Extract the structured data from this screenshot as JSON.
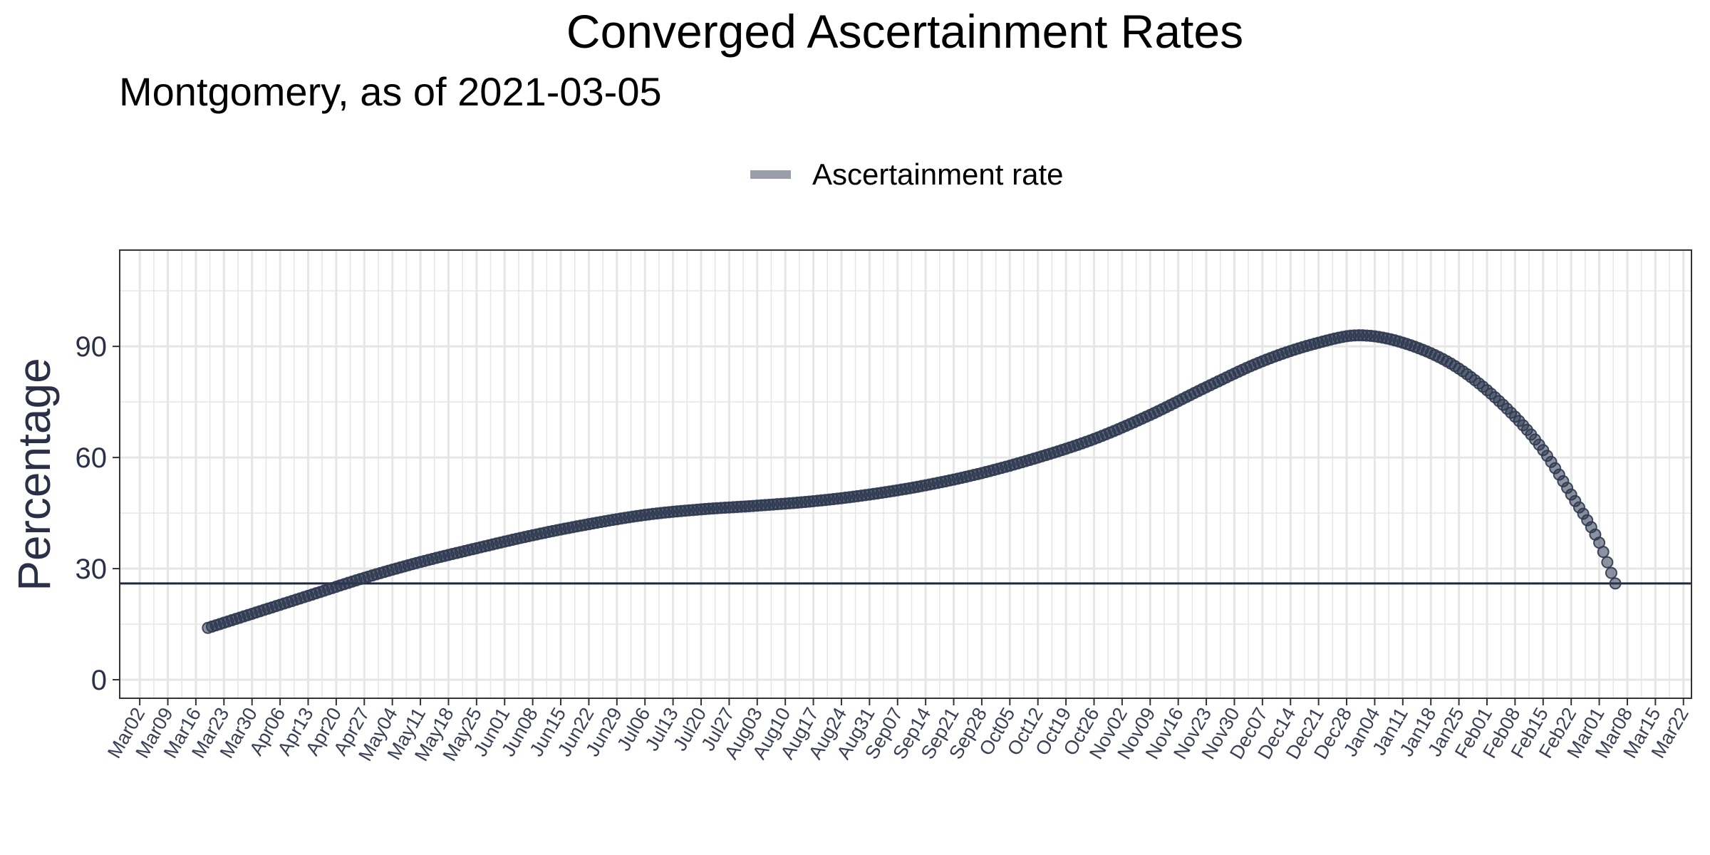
{
  "chart_data": {
    "type": "scatter",
    "title": "Converged Ascertainment Rates",
    "subtitle": "Montgomery, as of 2021-03-05",
    "ylabel": "Percentage",
    "xlabel": "",
    "legend": {
      "position": "top",
      "entries": [
        "Ascertainment rate"
      ]
    },
    "colors": {
      "series": "#2e3850",
      "hline": "#1e2840",
      "grid": "#e6e6e6",
      "legend_swatch": "#9a9eab"
    },
    "grid": true,
    "x_date_range": [
      "2020-02-26",
      "2021-03-24"
    ],
    "ylim": [
      -5,
      116
    ],
    "yticks": [
      0,
      30,
      60,
      90
    ],
    "xticks": [
      {
        "date": "2020-03-02",
        "label": "Mar02"
      },
      {
        "date": "2020-03-09",
        "label": "Mar09"
      },
      {
        "date": "2020-03-16",
        "label": "Mar16"
      },
      {
        "date": "2020-03-23",
        "label": "Mar23"
      },
      {
        "date": "2020-03-30",
        "label": "Mar30"
      },
      {
        "date": "2020-04-06",
        "label": "Apr06"
      },
      {
        "date": "2020-04-13",
        "label": "Apr13"
      },
      {
        "date": "2020-04-20",
        "label": "Apr20"
      },
      {
        "date": "2020-04-27",
        "label": "Apr27"
      },
      {
        "date": "2020-05-04",
        "label": "May04"
      },
      {
        "date": "2020-05-11",
        "label": "May11"
      },
      {
        "date": "2020-05-18",
        "label": "May18"
      },
      {
        "date": "2020-05-25",
        "label": "May25"
      },
      {
        "date": "2020-06-01",
        "label": "Jun01"
      },
      {
        "date": "2020-06-08",
        "label": "Jun08"
      },
      {
        "date": "2020-06-15",
        "label": "Jun15"
      },
      {
        "date": "2020-06-22",
        "label": "Jun22"
      },
      {
        "date": "2020-06-29",
        "label": "Jun29"
      },
      {
        "date": "2020-07-06",
        "label": "Jul06"
      },
      {
        "date": "2020-07-13",
        "label": "Jul13"
      },
      {
        "date": "2020-07-20",
        "label": "Jul20"
      },
      {
        "date": "2020-07-27",
        "label": "Jul27"
      },
      {
        "date": "2020-08-03",
        "label": "Aug03"
      },
      {
        "date": "2020-08-10",
        "label": "Aug10"
      },
      {
        "date": "2020-08-17",
        "label": "Aug17"
      },
      {
        "date": "2020-08-24",
        "label": "Aug24"
      },
      {
        "date": "2020-08-31",
        "label": "Aug31"
      },
      {
        "date": "2020-09-07",
        "label": "Sep07"
      },
      {
        "date": "2020-09-14",
        "label": "Sep14"
      },
      {
        "date": "2020-09-21",
        "label": "Sep21"
      },
      {
        "date": "2020-09-28",
        "label": "Sep28"
      },
      {
        "date": "2020-10-05",
        "label": "Oct05"
      },
      {
        "date": "2020-10-12",
        "label": "Oct12"
      },
      {
        "date": "2020-10-19",
        "label": "Oct19"
      },
      {
        "date": "2020-10-26",
        "label": "Oct26"
      },
      {
        "date": "2020-11-02",
        "label": "Nov02"
      },
      {
        "date": "2020-11-09",
        "label": "Nov09"
      },
      {
        "date": "2020-11-16",
        "label": "Nov16"
      },
      {
        "date": "2020-11-23",
        "label": "Nov23"
      },
      {
        "date": "2020-11-30",
        "label": "Nov30"
      },
      {
        "date": "2020-12-07",
        "label": "Dec07"
      },
      {
        "date": "2020-12-14",
        "label": "Dec14"
      },
      {
        "date": "2020-12-21",
        "label": "Dec21"
      },
      {
        "date": "2020-12-28",
        "label": "Dec28"
      },
      {
        "date": "2021-01-04",
        "label": "Jan04"
      },
      {
        "date": "2021-01-11",
        "label": "Jan11"
      },
      {
        "date": "2021-01-18",
        "label": "Jan18"
      },
      {
        "date": "2021-01-25",
        "label": "Jan25"
      },
      {
        "date": "2021-02-01",
        "label": "Feb01"
      },
      {
        "date": "2021-02-08",
        "label": "Feb08"
      },
      {
        "date": "2021-02-15",
        "label": "Feb15"
      },
      {
        "date": "2021-02-22",
        "label": "Feb22"
      },
      {
        "date": "2021-03-01",
        "label": "Mar01"
      },
      {
        "date": "2021-03-08",
        "label": "Mar08"
      },
      {
        "date": "2021-03-15",
        "label": "Mar15"
      },
      {
        "date": "2021-03-22",
        "label": "Mar22"
      }
    ],
    "hline": {
      "y": 26
    },
    "series": [
      {
        "name": "Ascertainment rate",
        "points": [
          {
            "x": "2020-03-19",
            "y": 14
          },
          {
            "x": "2020-04-01",
            "y": 18.5
          },
          {
            "x": "2020-04-14",
            "y": 23
          },
          {
            "x": "2020-04-27",
            "y": 27.5
          },
          {
            "x": "2020-05-10",
            "y": 31.5
          },
          {
            "x": "2020-05-25",
            "y": 35.5
          },
          {
            "x": "2020-06-08",
            "y": 39
          },
          {
            "x": "2020-06-22",
            "y": 42
          },
          {
            "x": "2020-07-06",
            "y": 44.5
          },
          {
            "x": "2020-07-20",
            "y": 46
          },
          {
            "x": "2020-08-03",
            "y": 47
          },
          {
            "x": "2020-08-17",
            "y": 48.2
          },
          {
            "x": "2020-08-31",
            "y": 50
          },
          {
            "x": "2020-09-14",
            "y": 52.5
          },
          {
            "x": "2020-09-28",
            "y": 55.8
          },
          {
            "x": "2020-10-12",
            "y": 60
          },
          {
            "x": "2020-10-26",
            "y": 65
          },
          {
            "x": "2020-11-09",
            "y": 71.5
          },
          {
            "x": "2020-11-23",
            "y": 79
          },
          {
            "x": "2020-12-07",
            "y": 86
          },
          {
            "x": "2020-12-21",
            "y": 91
          },
          {
            "x": "2020-12-31",
            "y": 93
          },
          {
            "x": "2021-01-11",
            "y": 91
          },
          {
            "x": "2021-01-25",
            "y": 84
          },
          {
            "x": "2021-02-08",
            "y": 71
          },
          {
            "x": "2021-02-15",
            "y": 62
          },
          {
            "x": "2021-02-22",
            "y": 50
          },
          {
            "x": "2021-03-01",
            "y": 37
          },
          {
            "x": "2021-03-05",
            "y": 26
          }
        ]
      }
    ]
  }
}
